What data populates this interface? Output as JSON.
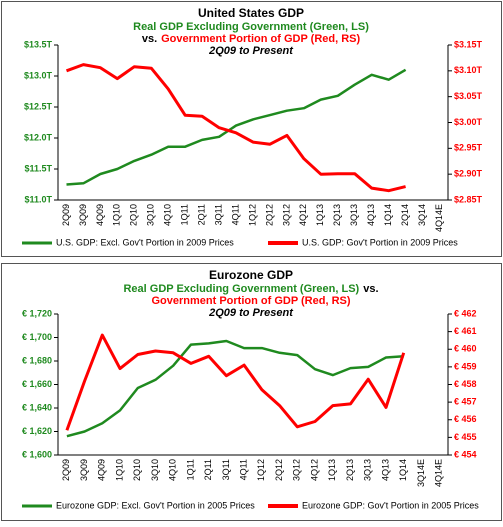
{
  "chart_data": [
    {
      "type": "line",
      "title": "United States GDP",
      "subtitle": [
        [
          {
            "text": "Real GDP Excluding Government (Green, LS)",
            "color": "#1f8a1f"
          }
        ],
        [
          {
            "text": "vs.",
            "color": "#000000"
          },
          {
            "text": "Government Portion of GDP (Red, RS)",
            "color": "#ff0000"
          }
        ],
        [
          {
            "text": "2Q09 to Present",
            "color": "#000000"
          }
        ]
      ],
      "categories": [
        "2Q09",
        "3Q09",
        "4Q09",
        "1Q10",
        "2Q10",
        "3Q10",
        "4Q10",
        "1Q11",
        "2Q11",
        "3Q11",
        "4Q11",
        "1Q12",
        "2Q12",
        "3Q12",
        "4Q12",
        "1Q13",
        "2Q13",
        "3Q13",
        "4Q13",
        "1Q14",
        "2Q14",
        "3Q14",
        "4Q14E"
      ],
      "series": [
        {
          "name": "U.S. GDP: Excl. Gov't Portion in 2009 Prices",
          "color": "#1f8a1f",
          "axis": "y",
          "values": [
            11.25,
            11.27,
            11.42,
            11.5,
            11.63,
            11.73,
            11.86,
            11.86,
            11.97,
            12.02,
            12.2,
            12.3,
            12.37,
            12.44,
            12.48,
            12.62,
            12.68,
            12.86,
            13.02,
            12.94,
            13.1,
            null,
            null
          ]
        },
        {
          "name": "U.S. GDP: Gov't Portion in 2009 Prices",
          "color": "#ff0000",
          "axis": "y2",
          "values": [
            3.1,
            3.112,
            3.106,
            3.085,
            3.108,
            3.105,
            3.065,
            3.014,
            3.012,
            2.99,
            2.98,
            2.962,
            2.958,
            2.975,
            2.93,
            2.9,
            2.901,
            2.901,
            2.873,
            2.868,
            2.876,
            null,
            null
          ]
        }
      ],
      "ylim": [
        11.0,
        13.5
      ],
      "yticks": [
        {
          "value": 11.0,
          "label": "$11.0T"
        },
        {
          "value": 11.5,
          "label": "$11.5T"
        },
        {
          "value": 12.0,
          "label": "$12.0T"
        },
        {
          "value": 12.5,
          "label": "$12.5T"
        },
        {
          "value": 13.0,
          "label": "$13.0T"
        },
        {
          "value": 13.5,
          "label": "$13.5T"
        }
      ],
      "y2lim": [
        2.85,
        3.15
      ],
      "y2ticks": [
        {
          "value": 2.85,
          "label": "$2.85T"
        },
        {
          "value": 2.9,
          "label": "$2.90T"
        },
        {
          "value": 2.95,
          "label": "$2.95T"
        },
        {
          "value": 3.0,
          "label": "$3.00T"
        },
        {
          "value": 3.05,
          "label": "$3.05T"
        },
        {
          "value": 3.1,
          "label": "$3.10T"
        },
        {
          "value": 3.15,
          "label": "$3.15T"
        }
      ],
      "grid": false
    },
    {
      "type": "line",
      "title": "Eurozone GDP",
      "subtitle": [
        [
          {
            "text": "Real GDP Excluding Government (Green, LS)",
            "color": "#1f8a1f"
          },
          {
            "text": "vs.",
            "color": "#000000"
          }
        ],
        [
          {
            "text": "Government  Portion of GDP (Red, RS)",
            "color": "#ff0000"
          }
        ],
        [
          {
            "text": "2Q09 to Present",
            "color": "#000000"
          }
        ]
      ],
      "categories": [
        "2Q09",
        "3Q09",
        "4Q09",
        "1Q10",
        "2Q10",
        "3Q10",
        "4Q10",
        "1Q11",
        "2Q11",
        "3Q11",
        "4Q11",
        "1Q12",
        "2Q12",
        "3Q12",
        "4Q12",
        "1Q13",
        "2Q13",
        "3Q13",
        "4Q13",
        "1Q14",
        "3Q14E",
        "4Q14E"
      ],
      "series": [
        {
          "name": "Eurozone GDP: Excl. Gov't Portion in 2005 Prices",
          "color": "#1f8a1f",
          "axis": "y",
          "values": [
            1616,
            1620,
            1627,
            1638,
            1657,
            1664,
            1676,
            1694,
            1695,
            1697,
            1691,
            1691,
            1687,
            1685,
            1673,
            1668,
            1674,
            1675,
            1683,
            1684,
            null,
            null
          ]
        },
        {
          "name": "Eurozone GDP: Gov't Portion in 2005 Prices",
          "color": "#ff0000",
          "axis": "y2",
          "values": [
            455.4,
            458.2,
            460.8,
            458.9,
            459.7,
            459.9,
            459.8,
            459.2,
            459.6,
            458.5,
            459.1,
            457.7,
            456.8,
            455.6,
            455.9,
            456.8,
            456.9,
            458.3,
            456.7,
            459.8,
            null,
            null
          ]
        }
      ],
      "ylim": [
        1600,
        1720
      ],
      "yticks": [
        {
          "value": 1600,
          "label": "€ 1,600"
        },
        {
          "value": 1620,
          "label": "€ 1,620"
        },
        {
          "value": 1640,
          "label": "€ 1,640"
        },
        {
          "value": 1660,
          "label": "€ 1,660"
        },
        {
          "value": 1680,
          "label": "€ 1,680"
        },
        {
          "value": 1700,
          "label": "€ 1,700"
        },
        {
          "value": 1720,
          "label": "€ 1,720"
        }
      ],
      "y2lim": [
        454,
        462
      ],
      "y2ticks": [
        {
          "value": 454,
          "label": "€ 454"
        },
        {
          "value": 455,
          "label": "€ 455"
        },
        {
          "value": 456,
          "label": "€ 456"
        },
        {
          "value": 457,
          "label": "€ 457"
        },
        {
          "value": 458,
          "label": "€ 458"
        },
        {
          "value": 459,
          "label": "€ 459"
        },
        {
          "value": 460,
          "label": "€ 460"
        },
        {
          "value": 461,
          "label": "€ 461"
        },
        {
          "value": 462,
          "label": "€ 462"
        }
      ],
      "grid": false
    }
  ]
}
